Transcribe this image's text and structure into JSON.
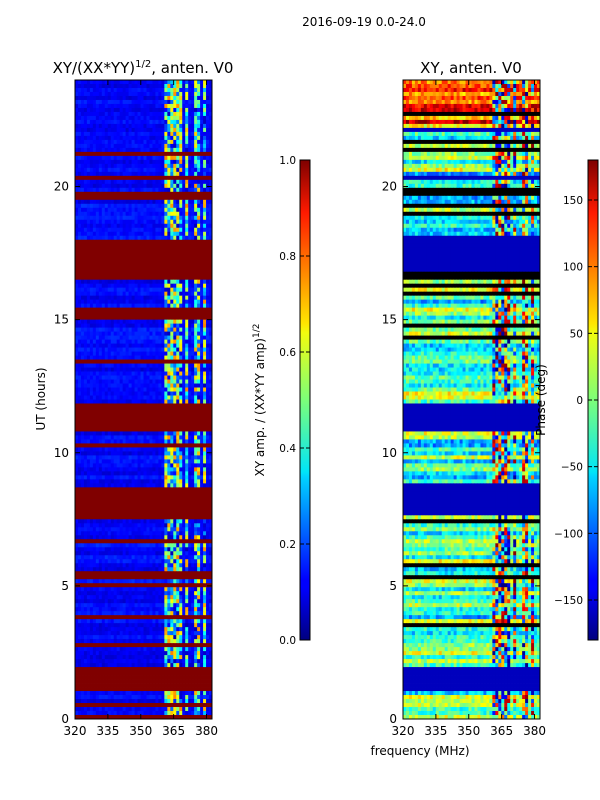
{
  "figure_title": "2016-09-19 0.0-24.0",
  "shared_xlabel": "frequency (MHz)",
  "chart_data": [
    {
      "type": "heatmap",
      "title_main": "XY/(XX*YY)",
      "title_sup": "1/2",
      "title_tail": ", anten. V0",
      "xlabel": "frequency (MHz)",
      "ylabel": "UT (hours)",
      "xlim": [
        320,
        382.5
      ],
      "ylim": [
        0,
        24
      ],
      "xticks": [
        320,
        335,
        350,
        365,
        380
      ],
      "yticks": [
        0,
        5,
        10,
        15,
        20
      ],
      "colorbar": {
        "label_main": "XY amp. / (XX*YY amp)",
        "label_sup": "1/2",
        "range": [
          0.0,
          1.0
        ],
        "ticks": [
          "0.0",
          "0.2",
          "0.4",
          "0.6",
          "0.8",
          "1.0"
        ],
        "tick_values": [
          0.0,
          0.2,
          0.4,
          0.6,
          0.8,
          1.0
        ]
      },
      "saturated_bands_hours": [
        [
          0,
          0.15
        ],
        [
          1.1,
          2.0
        ],
        [
          5.2,
          5.5
        ],
        [
          8.7,
          7.6
        ],
        [
          8.75,
          7.55
        ],
        [
          11.8,
          10.8
        ],
        [
          15.0,
          15.4
        ],
        [
          16.5,
          17.7
        ],
        [
          17.7,
          18.0
        ],
        [
          20.25,
          20.4
        ]
      ],
      "rfi_freq_bands_mhz": [
        [
          360.5,
          364.5
        ],
        [
          365.5,
          368.5
        ],
        [
          370,
          372
        ],
        [
          374,
          377
        ],
        [
          378,
          379.5
        ]
      ]
    },
    {
      "type": "heatmap",
      "title_main": "XY, anten. V0",
      "xlabel": "frequency (MHz)",
      "ylabel": "",
      "xlim": [
        320,
        382.5
      ],
      "ylim": [
        0,
        24
      ],
      "xticks": [
        320,
        335,
        350,
        365,
        380
      ],
      "yticks": [
        0,
        5,
        10,
        15,
        20
      ],
      "colorbar": {
        "label": "Phase (deg)",
        "range": [
          -180,
          180
        ],
        "ticks": [
          "150",
          "100",
          "50",
          "0",
          "−50",
          "−100",
          "−150"
        ],
        "tick_values": [
          150,
          100,
          50,
          0,
          -50,
          -100,
          -150
        ]
      },
      "flagged_bands_hours": [
        [
          1.0,
          2.0
        ],
        [
          7.6,
          8.8
        ],
        [
          10.8,
          11.8
        ],
        [
          16.8,
          18.2
        ],
        [
          22.0,
          22.2
        ],
        [
          20.3,
          20.4
        ]
      ]
    }
  ]
}
